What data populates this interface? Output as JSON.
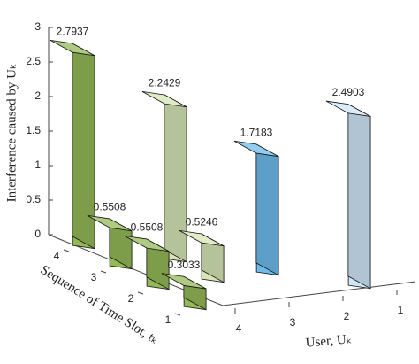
{
  "chart_data": {
    "type": "bar3d",
    "xlabel": "User, Uₖ",
    "ylabel": "Sequence of Time Slot, tₖ",
    "zlabel": "Interference caused by Uₖ",
    "xticks": [
      1,
      2,
      3,
      4
    ],
    "yticks": [
      1,
      2,
      3,
      4
    ],
    "zlim": [
      0,
      3
    ],
    "zticks": [
      0,
      0.5,
      1,
      1.5,
      2,
      2.5,
      3
    ],
    "bars": [
      {
        "x": 4,
        "y": 4,
        "value": 2.7937,
        "color": "#93b957"
      },
      {
        "x": 4,
        "y": 3,
        "value": 0.5508,
        "color": "#93b957"
      },
      {
        "x": 4,
        "y": 2,
        "value": 0.5508,
        "color": "#93b957"
      },
      {
        "x": 4,
        "y": 1,
        "value": 0.3033,
        "color": "#93b957"
      },
      {
        "x": 3,
        "y": 4,
        "value": 2.2429,
        "color": "#d5e5b5"
      },
      {
        "x": 3,
        "y": 3,
        "value": 0.5246,
        "color": "#d5e5b5"
      },
      {
        "x": 2,
        "y": 4,
        "value": 1.7183,
        "color": "#6dbbec"
      },
      {
        "x": 1,
        "y": 4,
        "value": 2.4903,
        "color": "#cfe7f9"
      }
    ]
  }
}
